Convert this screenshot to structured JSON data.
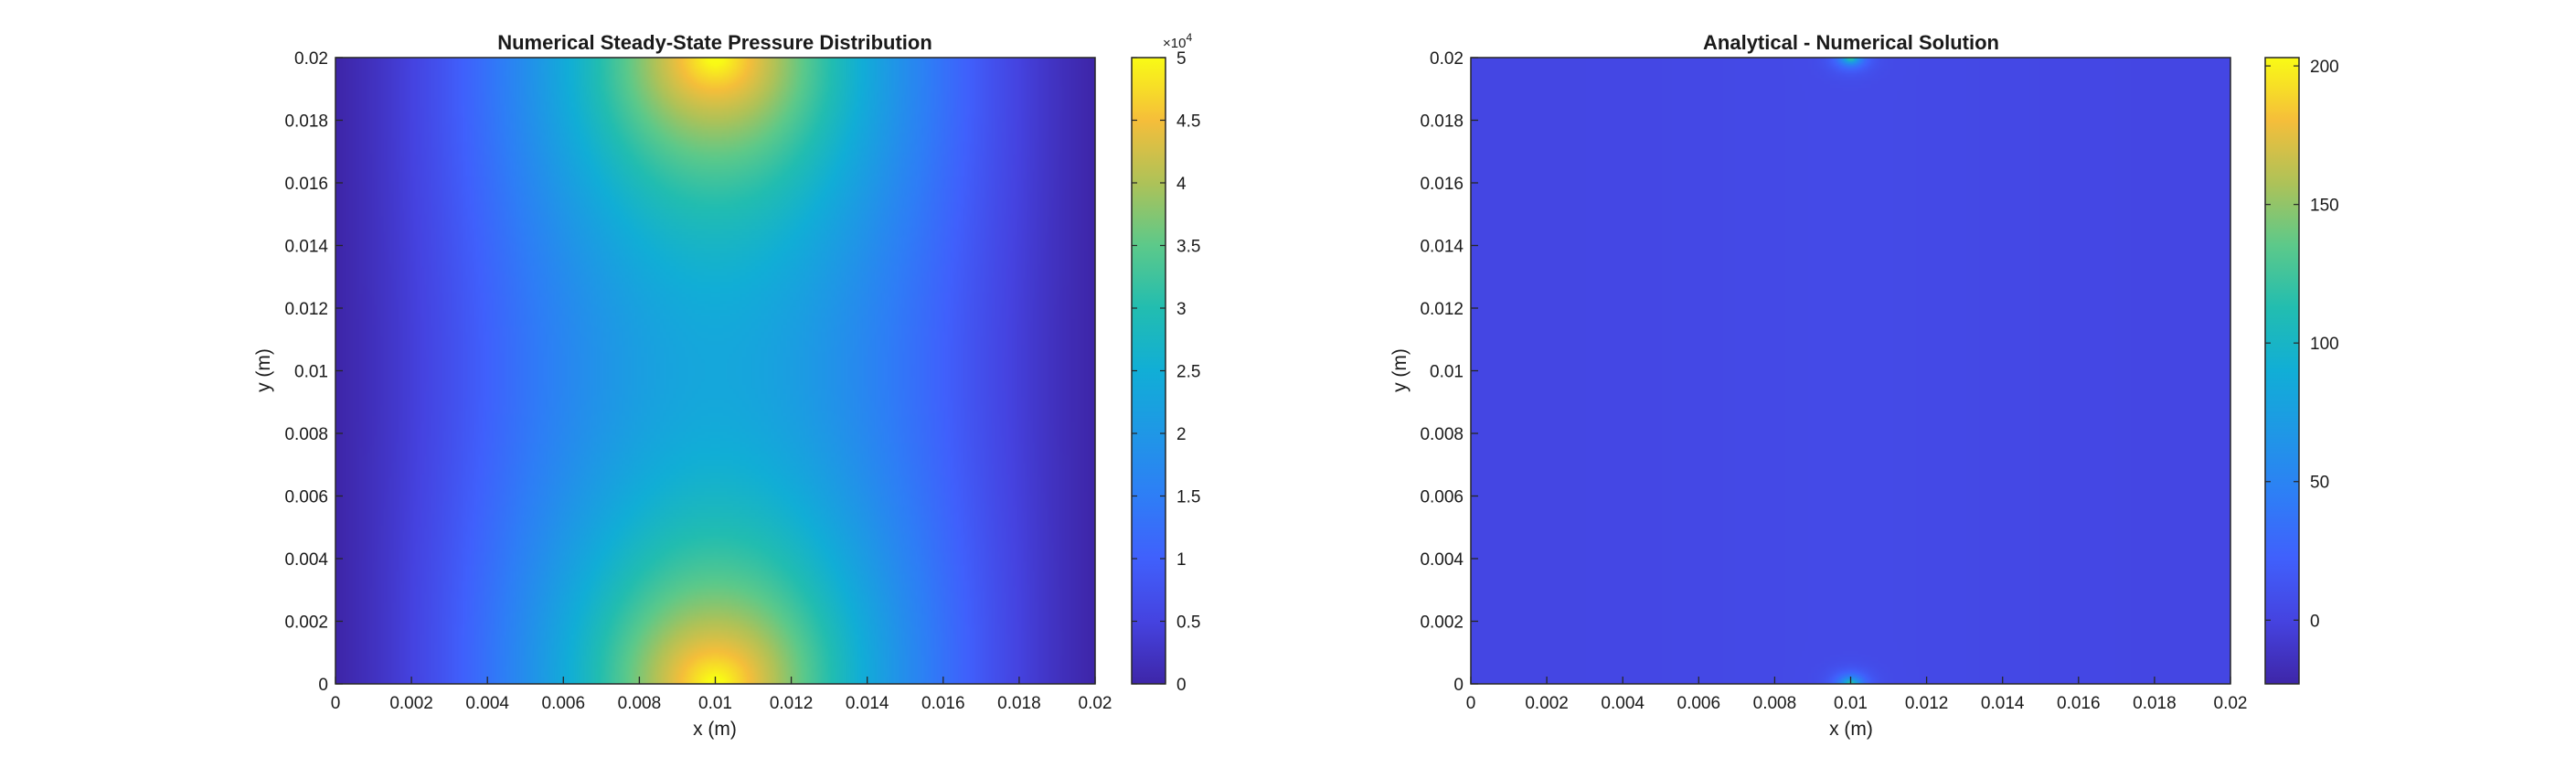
{
  "chart_data": [
    {
      "type": "heatmap",
      "title": "Numerical Steady-State Pressure Distribution",
      "xlabel": "x (m)",
      "ylabel": "y (m)",
      "xlim": [
        0,
        0.02
      ],
      "ylim": [
        0,
        0.02
      ],
      "xticks": [
        "0",
        "0.002",
        "0.004",
        "0.006",
        "0.008",
        "0.01",
        "0.012",
        "0.014",
        "0.016",
        "0.018",
        "0.02"
      ],
      "yticks": [
        "0",
        "0.002",
        "0.004",
        "0.006",
        "0.008",
        "0.01",
        "0.012",
        "0.014",
        "0.016",
        "0.018",
        "0.02"
      ],
      "colormap": "parula",
      "clim": [
        0,
        50000
      ],
      "colorbar_ticks": [
        "0",
        "0.5",
        "1",
        "1.5",
        "2",
        "2.5",
        "3",
        "3.5",
        "4",
        "4.5",
        "5"
      ],
      "colorbar_exponent": "×10",
      "colorbar_exponent_power": "4",
      "field": {
        "description_values": "zero on left/right edges x=0 and x=0.02; peaks ~50000 at (0.01, 0) and (0.01, 0.02); ~15000 near domain centre"
      }
    },
    {
      "type": "heatmap",
      "title": "Analytical - Numerical Solution",
      "xlabel": "x (m)",
      "ylabel": "y (m)",
      "xlim": [
        0,
        0.02
      ],
      "ylim": [
        0,
        0.02
      ],
      "xticks": [
        "0",
        "0.002",
        "0.004",
        "0.006",
        "0.008",
        "0.01",
        "0.012",
        "0.014",
        "0.016",
        "0.018",
        "0.02"
      ],
      "yticks": [
        "0",
        "0.002",
        "0.004",
        "0.006",
        "0.008",
        "0.01",
        "0.012",
        "0.014",
        "0.016",
        "0.018",
        "0.02"
      ],
      "colormap": "parula",
      "clim": [
        -23,
        203
      ],
      "colorbar_ticks": [
        "0",
        "50",
        "100",
        "150",
        "200"
      ],
      "colorbar_tick_values": [
        0,
        50,
        100,
        150,
        200
      ],
      "field": {
        "description_values": "~0 almost everywhere; sharp spikes up to ~200 at (0.01, 0) and (0.01, 0.02)"
      }
    }
  ]
}
